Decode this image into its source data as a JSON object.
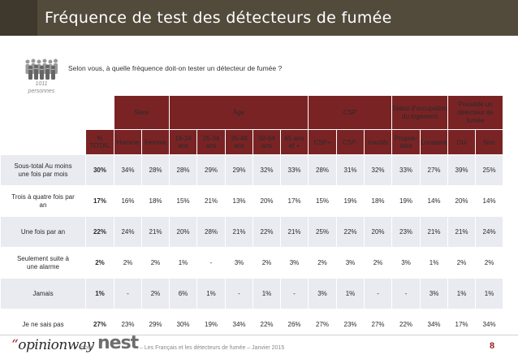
{
  "header": {
    "title": "Fréquence de test des détecteurs de fumée"
  },
  "sample": {
    "count_line1": "1011",
    "count_line2": "personnes"
  },
  "question": "Selon vous, à quelle fréquence doit-on tester un détecteur de fumée ?",
  "groups": [
    {
      "id": "sexe",
      "label": "Sexe"
    },
    {
      "id": "age",
      "label": "Âge"
    },
    {
      "id": "csp",
      "label": "CSP"
    },
    {
      "id": "statut_l1",
      "label": "Statut d'occupation"
    },
    {
      "id": "statut_l2",
      "label": "du logement"
    },
    {
      "id": "possede_l1",
      "label": "Possède un"
    },
    {
      "id": "possede_l2",
      "label": "détecteur de"
    },
    {
      "id": "possede_l3",
      "label": "fumée"
    }
  ],
  "columns": {
    "total": "% TOTAL",
    "homme": "Homme",
    "femme": "Femme",
    "a18": "18-24 ans",
    "a25": "25-34 ans",
    "a35": "35-49 ans",
    "a50": "50-64 ans",
    "a65_l1": "65 ans",
    "a65_l2": "et +",
    "cspplus": "CSP+",
    "cspmoins": "CSP-",
    "inactifs": "Inactifs",
    "prop_l1": "Proprié-",
    "prop_l2": "taire",
    "locataire": "Locataire",
    "oui": "Oui",
    "non": "Non"
  },
  "rows": [
    {
      "label_l1": "Sous-total Au moins",
      "label_l2": "une fois par mois",
      "values": [
        "30%",
        "34%",
        "28%",
        "28%",
        "29%",
        "29%",
        "32%",
        "33%",
        "28%",
        "31%",
        "32%",
        "33%",
        "27%",
        "39%",
        "25%"
      ]
    },
    {
      "label_l1": "Trois à quatre fois par",
      "label_l2": "an",
      "values": [
        "17%",
        "16%",
        "18%",
        "15%",
        "21%",
        "13%",
        "20%",
        "17%",
        "15%",
        "19%",
        "18%",
        "19%",
        "14%",
        "20%",
        "14%"
      ]
    },
    {
      "label_l1": "Une fois par an",
      "label_l2": "",
      "values": [
        "22%",
        "24%",
        "21%",
        "20%",
        "28%",
        "21%",
        "22%",
        "21%",
        "25%",
        "22%",
        "20%",
        "23%",
        "21%",
        "21%",
        "24%"
      ]
    },
    {
      "label_l1": "Seulement suite à",
      "label_l2": "une alarme",
      "values": [
        "2%",
        "2%",
        "2%",
        "1%",
        "-",
        "3%",
        "2%",
        "3%",
        "2%",
        "3%",
        "2%",
        "3%",
        "1%",
        "2%",
        "2%"
      ]
    },
    {
      "label_l1": "Jamais",
      "label_l2": "",
      "values": [
        "1%",
        "-",
        "2%",
        "6%",
        "1%",
        "-",
        "1%",
        "-",
        "3%",
        "1%",
        "-",
        "-",
        "3%",
        "1%",
        "1%"
      ]
    },
    {
      "label_l1": "Je ne sais pas",
      "label_l2": "",
      "values": [
        "27%",
        "23%",
        "29%",
        "30%",
        "19%",
        "34%",
        "22%",
        "26%",
        "27%",
        "23%",
        "27%",
        "22%",
        "34%",
        "17%",
        "34%"
      ]
    }
  ],
  "footer": {
    "logo_quote": "“",
    "logo_text": "opinionway",
    "pour": "pour",
    "nest": "nest",
    "caption": "– Les Français et les détecteurs de fumée – Janvier 2015",
    "page": "8"
  },
  "colors": {
    "title_bar": "#524b3c",
    "header_red": "#7a2325",
    "alt_row": "#e9ebf1",
    "accent_red": "#9a1b1e"
  }
}
